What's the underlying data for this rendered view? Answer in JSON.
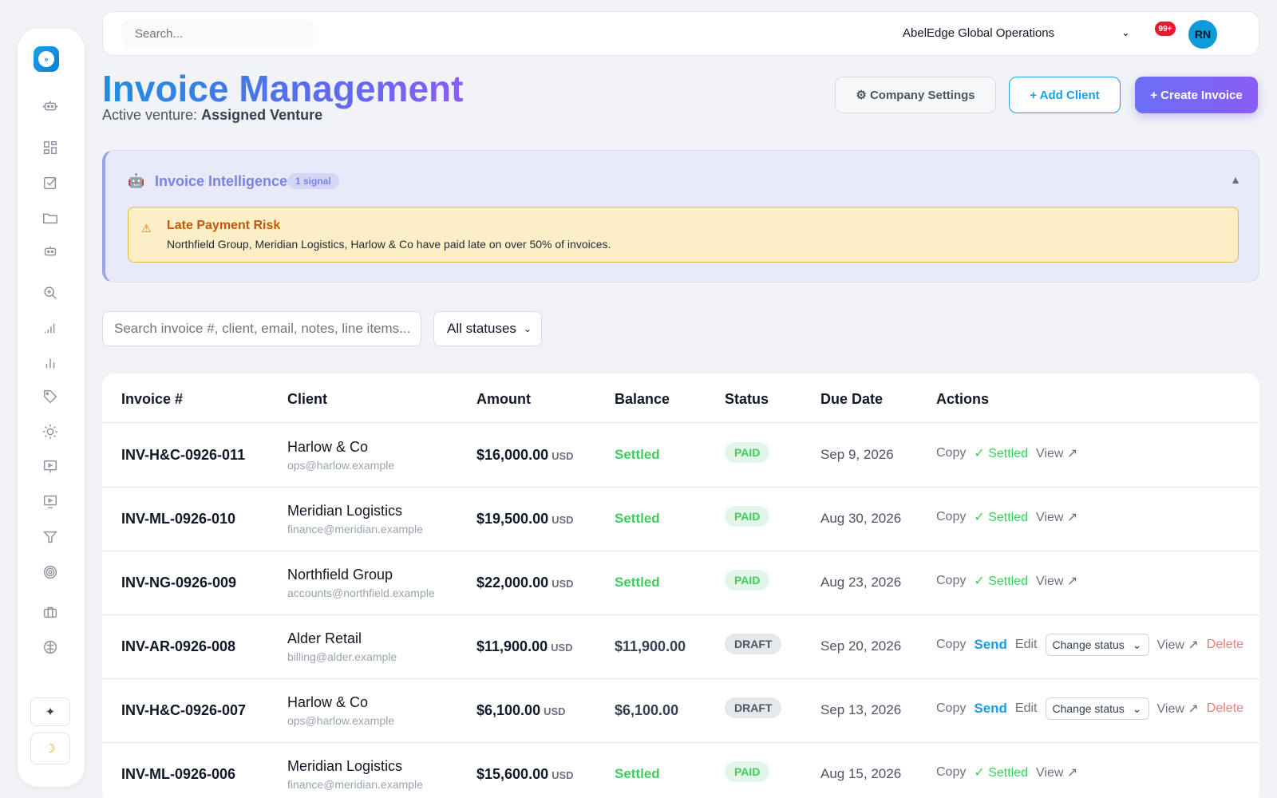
{
  "topbar": {
    "search_placeholder": "Search...",
    "org_name": "AbelEdge Global Operations",
    "notifications": "99+",
    "avatar_initials": "RN"
  },
  "header": {
    "title": "Invoice Management",
    "subtitle_prefix": "Active venture:",
    "subtitle_value": "Assigned Venture",
    "settings_label": "⚙ Company Settings",
    "add_client_label": "+ Add Client",
    "create_invoice_label": "+ Create Invoice"
  },
  "intelligence": {
    "icon": "🤖",
    "title": "Invoice Intelligence",
    "badge": "1 signal",
    "collapse": "▲",
    "alert": {
      "icon": "⚠",
      "title": "Late Payment Risk",
      "text": "Northfield Group, Meridian Logistics, Harlow & Co have paid late on over 50% of invoices."
    }
  },
  "filters": {
    "search_placeholder": "Search invoice #, client, email, notes, line items...",
    "status_value": "All statuses"
  },
  "table": {
    "columns": [
      "Invoice #",
      "Client",
      "Amount",
      "Balance",
      "Status",
      "Due Date",
      "Actions"
    ],
    "rows": [
      {
        "invoice": "INV-H&C-0926-011",
        "client": "Harlow & Co",
        "email": "ops@harlow.example",
        "amount": "$16,000.00",
        "currency": "USD",
        "balance": "Settled",
        "status": "PAID",
        "due": "Sep 9, 2026"
      },
      {
        "invoice": "INV-ML-0926-010",
        "client": "Meridian Logistics",
        "email": "finance@meridian.example",
        "amount": "$19,500.00",
        "currency": "USD",
        "balance": "Settled",
        "status": "PAID",
        "due": "Aug 30, 2026"
      },
      {
        "invoice": "INV-NG-0926-009",
        "client": "Northfield Group",
        "email": "accounts@northfield.example",
        "amount": "$22,000.00",
        "currency": "USD",
        "balance": "Settled",
        "status": "PAID",
        "due": "Aug 23, 2026"
      },
      {
        "invoice": "INV-AR-0926-008",
        "client": "Alder Retail",
        "email": "billing@alder.example",
        "amount": "$11,900.00",
        "currency": "USD",
        "balance": "$11,900.00",
        "status": "DRAFT",
        "due": "Sep 20, 2026"
      },
      {
        "invoice": "INV-H&C-0926-007",
        "client": "Harlow & Co",
        "email": "ops@harlow.example",
        "amount": "$6,100.00",
        "currency": "USD",
        "balance": "$6,100.00",
        "status": "DRAFT",
        "due": "Sep 13, 2026"
      },
      {
        "invoice": "INV-ML-0926-006",
        "client": "Meridian Logistics",
        "email": "finance@meridian.example",
        "amount": "$15,600.00",
        "currency": "USD",
        "balance": "Settled",
        "status": "PAID",
        "due": "Aug 15, 2026"
      }
    ],
    "actions": {
      "copy": "Copy",
      "settled": "✓ Settled",
      "view": "View ↗",
      "send": "Send",
      "edit": "Edit",
      "change_status": "Change status",
      "delete": "Delete"
    }
  },
  "sidebar": {
    "theme_toggle": "☽",
    "sparkle": "✦"
  },
  "colors": {
    "accent": "#1aa0e6",
    "purple": "#8b5cf6",
    "success": "#3ccf5b",
    "danger": "#f07a7a"
  }
}
